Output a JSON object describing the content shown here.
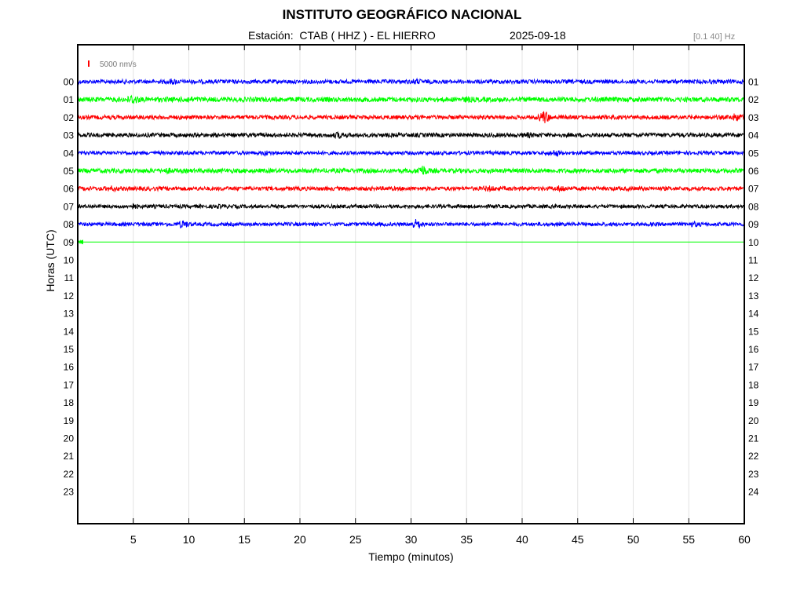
{
  "header": {
    "title": "INSTITUTO GEOGRÁFICO NACIONAL",
    "station_line": "Estación:  CTAB ( HHZ ) - EL HIERRO",
    "date": "2025-09-18",
    "filter": "[0.1 40] Hz"
  },
  "chart_data": {
    "type": "line",
    "title": "INSTITUTO GEOGRÁFICO NACIONAL",
    "xlabel": "Tiempo (minutos)",
    "ylabel": "Horas (UTC)",
    "xlim": [
      0,
      60
    ],
    "x_ticks": [
      "5",
      "10",
      "15",
      "20",
      "25",
      "30",
      "35",
      "40",
      "45",
      "50",
      "55",
      "60"
    ],
    "x_tick_values": [
      5,
      10,
      15,
      20,
      25,
      30,
      35,
      40,
      45,
      50,
      55,
      60
    ],
    "y_ticks_left": [
      "00",
      "01",
      "02",
      "03",
      "04",
      "05",
      "06",
      "07",
      "08",
      "09",
      "10",
      "11",
      "12",
      "13",
      "14",
      "15",
      "16",
      "17",
      "18",
      "19",
      "20",
      "21",
      "22",
      "23"
    ],
    "y_ticks_right": [
      "01",
      "02",
      "03",
      "04",
      "05",
      "06",
      "07",
      "08",
      "09",
      "10",
      "11",
      "12",
      "13",
      "14",
      "15",
      "16",
      "17",
      "18",
      "19",
      "20",
      "21",
      "22",
      "23",
      "24"
    ],
    "grid": "vertical",
    "scale_label": "5000 nm/s",
    "scale_color": "#ff0000",
    "series": [
      {
        "hour": 0,
        "color": "#0000ff",
        "end_minute": 60,
        "noise": 1.0,
        "events": [
          {
            "minute": 8.5,
            "amp": 1.6
          },
          {
            "minute": 30.5,
            "amp": 1.5
          }
        ]
      },
      {
        "hour": 1,
        "color": "#00ff00",
        "end_minute": 60,
        "noise": 1.2,
        "events": [
          {
            "minute": 5.0,
            "amp": 2.5
          },
          {
            "minute": 10.0,
            "amp": 1.5
          },
          {
            "minute": 35.0,
            "amp": 1.4
          }
        ]
      },
      {
        "hour": 2,
        "color": "#ff0000",
        "end_minute": 60,
        "noise": 1.0,
        "events": [
          {
            "minute": 42.0,
            "amp": 3.4
          },
          {
            "minute": 59.3,
            "amp": 2.2
          }
        ]
      },
      {
        "hour": 3,
        "color": "#000000",
        "end_minute": 60,
        "noise": 1.0,
        "events": [
          {
            "minute": 23.5,
            "amp": 1.8
          },
          {
            "minute": 40.5,
            "amp": 1.5
          }
        ]
      },
      {
        "hour": 4,
        "color": "#0000ff",
        "end_minute": 60,
        "noise": 0.9,
        "events": [
          {
            "minute": 17.0,
            "amp": 1.5
          },
          {
            "minute": 43.0,
            "amp": 1.9
          }
        ]
      },
      {
        "hour": 5,
        "color": "#00ff00",
        "end_minute": 60,
        "noise": 1.1,
        "events": [
          {
            "minute": 8.0,
            "amp": 1.6
          },
          {
            "minute": 31.0,
            "amp": 2.8
          }
        ]
      },
      {
        "hour": 6,
        "color": "#ff0000",
        "end_minute": 60,
        "noise": 1.0,
        "events": [
          {
            "minute": 3.0,
            "amp": 1.5
          },
          {
            "minute": 37.0,
            "amp": 1.6
          },
          {
            "minute": 43.5,
            "amp": 1.8
          }
        ]
      },
      {
        "hour": 7,
        "color": "#000000",
        "end_minute": 60,
        "noise": 0.9,
        "events": [
          {
            "minute": 5.0,
            "amp": 1.7
          },
          {
            "minute": 13.0,
            "amp": 1.3
          }
        ]
      },
      {
        "hour": 8,
        "color": "#0000ff",
        "end_minute": 60,
        "noise": 0.9,
        "events": [
          {
            "minute": 9.5,
            "amp": 2.2
          },
          {
            "minute": 30.5,
            "amp": 2.8
          },
          {
            "minute": 55.5,
            "amp": 1.6
          }
        ]
      },
      {
        "hour": 9,
        "color": "#00ff00",
        "end_minute": 0.5,
        "noise": 0.8,
        "events": []
      }
    ]
  }
}
